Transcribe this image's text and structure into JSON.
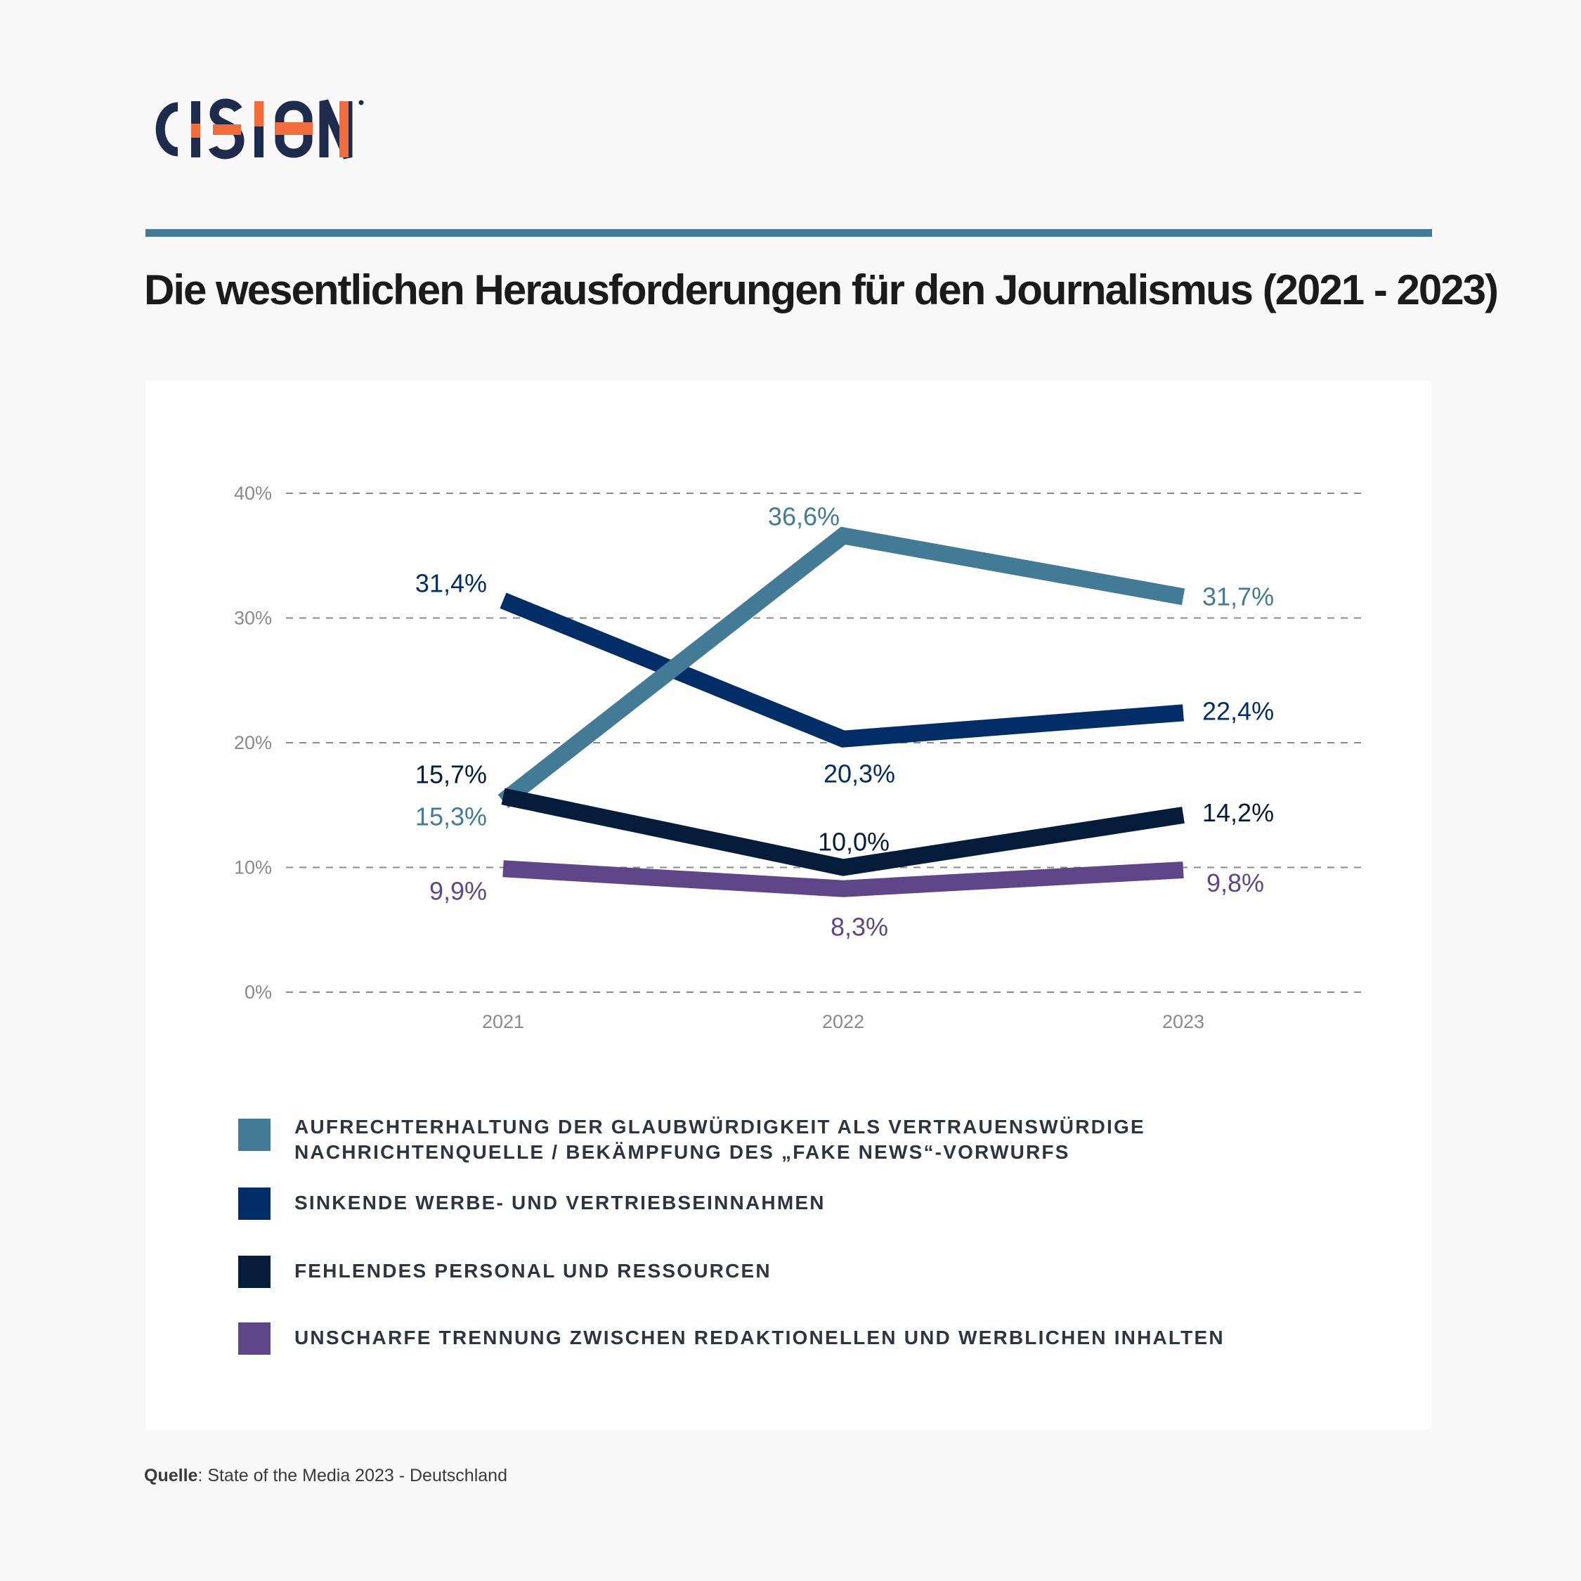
{
  "brand": {
    "name": "CISION",
    "colors": {
      "navy": "#1f2b4d",
      "orange": "#f26b3a"
    }
  },
  "rule_color": "#437b96",
  "title": "Die wesentlichen Herausforderungen für den Journalismus (2021 - 2023)",
  "source": {
    "label": "Quelle",
    "text": ": State of the Media 2023 - Deutschland"
  },
  "chart_data": {
    "type": "line",
    "title": "Die wesentlichen Herausforderungen für den Journalismus (2021 - 2023)",
    "x": [
      "2021",
      "2022",
      "2023"
    ],
    "ylim": [
      0,
      40
    ],
    "yticks": [
      0,
      10,
      20,
      30,
      40
    ],
    "ytick_labels": [
      "0%",
      "10%",
      "20%",
      "30%",
      "40%"
    ],
    "grid": "dashed horizontal",
    "legend_position": "bottom",
    "series": [
      {
        "name": "Aufrechterhaltung der Glaubwürdigkeit als vertrauenswürdige Nachrichtenquelle / Bekämpfung des „Fake News“-Vorwurfs",
        "color": "#437b96",
        "values": [
          15.3,
          36.6,
          31.7
        ],
        "labels": [
          "15,3%",
          "36,6%",
          "31,7%"
        ]
      },
      {
        "name": "Sinkende Werbe- und Vertriebseinnahmen",
        "color": "#022d66",
        "values": [
          31.4,
          20.3,
          22.4
        ],
        "labels": [
          "31,4%",
          "20,3%",
          "22,4%"
        ]
      },
      {
        "name": "Fehlendes Personal und Ressourcen",
        "color": "#061c3b",
        "values": [
          15.7,
          10.0,
          14.2
        ],
        "labels": [
          "15,7%",
          "10,0%",
          "14,2%"
        ]
      },
      {
        "name": "Unscharfe Trennung zwischen redaktionellen und werblichen Inhalten",
        "color": "#5e4688",
        "values": [
          9.9,
          8.3,
          9.8
        ],
        "labels": [
          "9,9%",
          "8,3%",
          "9,8%"
        ]
      }
    ]
  }
}
